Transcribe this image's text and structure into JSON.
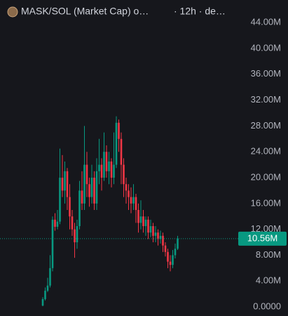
{
  "chart_data": {
    "type": "candlestick",
    "title": "MASK/SOL (Market Cap) o…",
    "subtitle": "· 12h · de…",
    "up_color": "#089981",
    "down_color": "#f23645",
    "ylim": [
      -1.41,
      47.5
    ],
    "yticks": [
      {
        "value": 0,
        "label": "0.0000"
      },
      {
        "value": 4,
        "label": "4.00M"
      },
      {
        "value": 8,
        "label": "8.00M"
      },
      {
        "value": 12,
        "label": "12.00M"
      },
      {
        "value": 16,
        "label": "16.00M"
      },
      {
        "value": 20,
        "label": "20.00M"
      },
      {
        "value": 24,
        "label": "24.00M"
      },
      {
        "value": 28,
        "label": "28.00M"
      },
      {
        "value": 32,
        "label": "32.00M"
      },
      {
        "value": 36,
        "label": "36.00M"
      },
      {
        "value": 40,
        "label": "40.00M"
      },
      {
        "value": 44,
        "label": "44.00M"
      }
    ],
    "last_price": {
      "value": 10.56,
      "label": "10.56M"
    },
    "open": [
      0.2,
      1.2,
      2.5,
      3.3,
      6,
      13.5,
      12.4,
      13.2,
      20,
      18,
      21,
      17,
      14,
      12,
      10,
      12.5,
      18,
      16,
      22,
      19,
      17,
      20,
      16,
      21,
      22,
      20,
      24,
      21,
      22.5,
      20,
      22,
      28.5,
      26,
      22,
      19,
      18,
      17,
      16,
      17,
      15,
      13,
      14,
      12.5,
      13.5,
      11.5,
      12.5,
      11,
      11.5,
      10.5,
      11,
      9.5,
      8.5,
      7,
      6.5,
      8,
      9
    ],
    "high": [
      1.5,
      3,
      4.5,
      8,
      14,
      14.5,
      15,
      24.5,
      23.5,
      22.5,
      21.5,
      19,
      15,
      13,
      13.5,
      19.5,
      21,
      28,
      24,
      20,
      22,
      21,
      23,
      26,
      23,
      27,
      25,
      24,
      23,
      27,
      29.5,
      29,
      27,
      23,
      20,
      19,
      18.5,
      19,
      17.5,
      16,
      16.5,
      15,
      14,
      14,
      13.5,
      13,
      12.5,
      12,
      11.8,
      11.5,
      10,
      9,
      8,
      8.8,
      9.8,
      11
    ],
    "low": [
      0.1,
      1,
      2.3,
      3,
      5.5,
      11.8,
      12,
      12.8,
      17,
      16,
      15,
      12,
      11,
      7.6,
      9,
      12,
      15,
      15,
      17,
      15.5,
      16,
      15,
      15,
      19,
      18,
      19.5,
      20,
      19,
      18.5,
      19,
      21.5,
      24,
      19,
      17,
      16,
      15,
      14.5,
      15,
      13,
      11.5,
      12,
      11.5,
      11,
      10.5,
      10.8,
      10,
      10,
      9.5,
      9.8,
      8.5,
      7.8,
      6,
      5.5,
      6,
      7.5,
      8.8
    ],
    "close": [
      1.2,
      2.5,
      3.3,
      6,
      13.5,
      12.4,
      13.2,
      20,
      18,
      21,
      17,
      14,
      12,
      10,
      12.5,
      18,
      16,
      22,
      19,
      17,
      20,
      16,
      21,
      22,
      20,
      24,
      21,
      22.5,
      20,
      22,
      28.5,
      26,
      22,
      19,
      18,
      17,
      16,
      17,
      15,
      13,
      14,
      12.5,
      13.5,
      11.5,
      12.5,
      11,
      11.5,
      10.5,
      11,
      9.5,
      8.5,
      7,
      6.5,
      8,
      9,
      10.56
    ]
  }
}
